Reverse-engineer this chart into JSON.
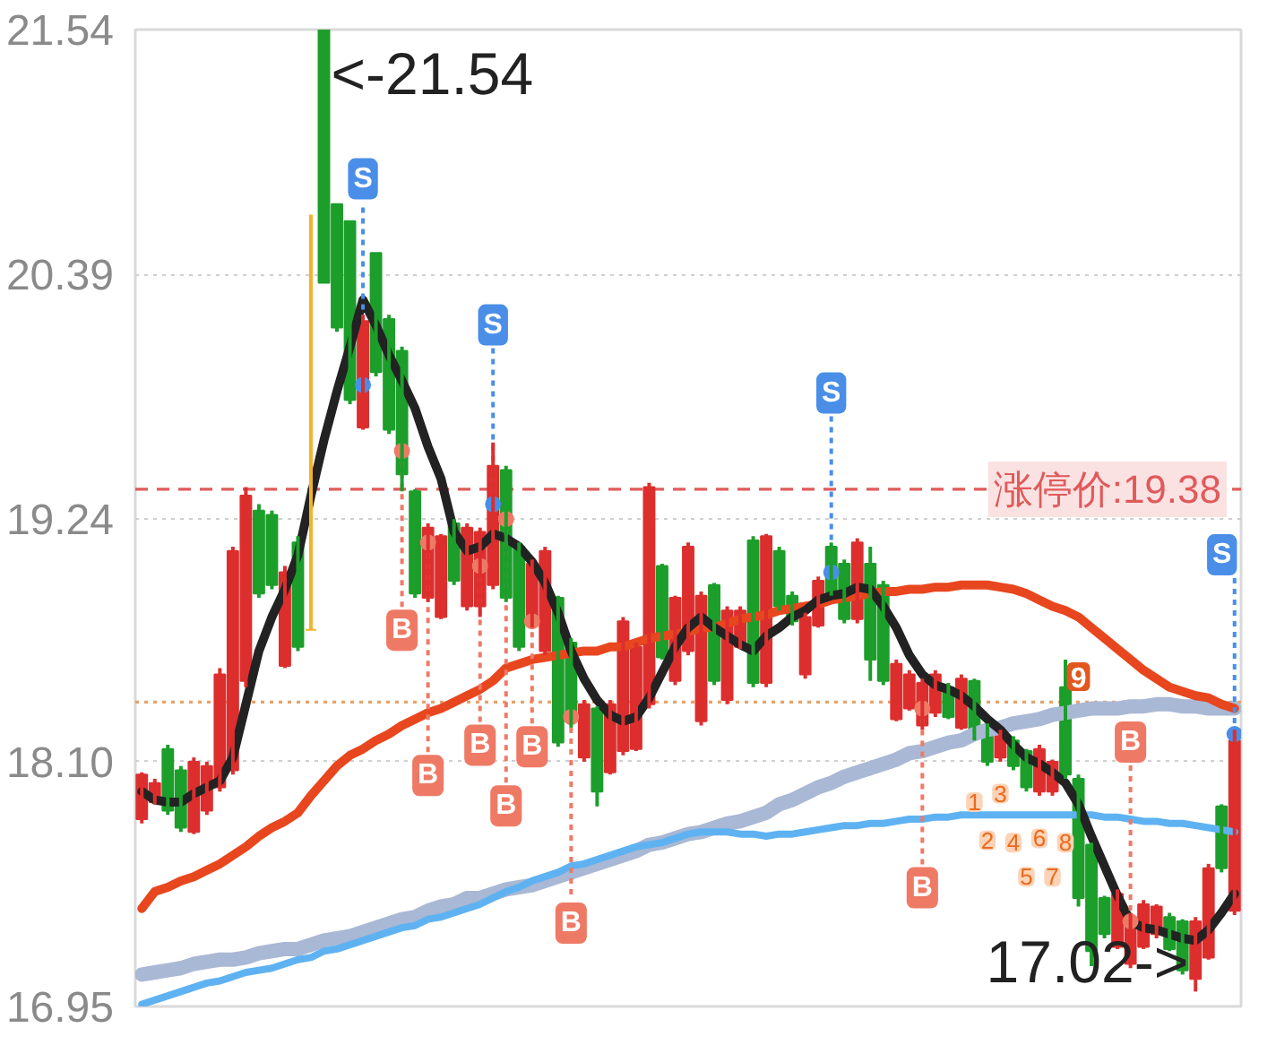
{
  "chart_data": {
    "type": "candlestick",
    "categories": [
      null,
      null,
      null,
      null,
      null,
      null,
      null,
      null,
      null,
      null,
      null,
      null,
      null,
      null,
      null,
      null,
      null,
      null,
      null,
      null,
      null,
      null,
      null,
      null,
      null,
      null,
      null,
      null,
      null,
      null,
      null,
      null,
      null,
      null,
      null,
      null,
      null,
      null,
      null,
      null,
      null,
      null,
      null,
      null,
      null,
      null,
      null,
      null,
      null,
      null,
      null,
      null,
      null,
      null,
      null,
      null,
      null,
      null,
      null,
      null,
      null,
      null,
      null,
      null,
      null,
      null,
      null,
      null,
      null,
      null,
      null,
      null,
      null,
      null,
      null,
      null,
      null,
      null,
      null,
      null,
      null,
      null,
      null,
      null,
      null
    ],
    "ohlc": [
      [
        17.83,
        18.05,
        17.81,
        18.04
      ],
      [
        17.91,
        18.02,
        17.9,
        18.0
      ],
      [
        18.16,
        18.18,
        17.85,
        17.87
      ],
      [
        18.06,
        18.08,
        17.77,
        17.79
      ],
      [
        17.77,
        18.12,
        17.76,
        18.1
      ],
      [
        17.87,
        18.1,
        17.85,
        18.08
      ],
      [
        17.98,
        18.54,
        17.96,
        18.51
      ],
      [
        18.06,
        19.11,
        18.04,
        19.09
      ],
      [
        18.48,
        19.39,
        18.45,
        19.35
      ],
      [
        19.28,
        19.31,
        18.87,
        18.89
      ],
      [
        19.26,
        19.28,
        18.91,
        18.93
      ],
      [
        18.55,
        19.02,
        18.54,
        18.99
      ],
      [
        19.13,
        19.16,
        18.62,
        18.64
      ],
      [
        18.72,
        20.67,
        18.72,
        18.72
      ],
      [
        21.54,
        21.54,
        20.35,
        20.35
      ],
      [
        20.72,
        20.72,
        20.12,
        20.14
      ],
      [
        20.64,
        20.64,
        19.78,
        19.8
      ],
      [
        19.67,
        20.2,
        19.66,
        20.17
      ],
      [
        20.49,
        20.49,
        19.91,
        19.93
      ],
      [
        20.18,
        20.2,
        19.64,
        19.66
      ],
      [
        20.03,
        20.05,
        19.37,
        19.45
      ],
      [
        19.37,
        19.38,
        18.87,
        18.89
      ],
      [
        18.87,
        19.22,
        18.85,
        19.2
      ],
      [
        18.78,
        19.17,
        18.77,
        19.16
      ],
      [
        19.22,
        19.24,
        18.93,
        18.95
      ],
      [
        18.83,
        19.22,
        18.81,
        19.2
      ],
      [
        18.83,
        19.2,
        18.78,
        19.18
      ],
      [
        18.93,
        19.6,
        18.91,
        19.49
      ],
      [
        19.47,
        19.49,
        18.85,
        18.87
      ],
      [
        19.11,
        19.13,
        18.62,
        18.64
      ],
      [
        18.74,
        19.05,
        18.73,
        19.03
      ],
      [
        18.62,
        19.11,
        18.6,
        19.09
      ],
      [
        18.87,
        18.88,
        18.17,
        18.19
      ],
      [
        18.66,
        18.68,
        18.26,
        18.29
      ],
      [
        18.12,
        18.39,
        18.1,
        18.37
      ],
      [
        18.35,
        18.36,
        17.89,
        17.96
      ],
      [
        18.05,
        18.39,
        18.04,
        18.37
      ],
      [
        18.15,
        18.78,
        18.13,
        18.76
      ],
      [
        18.16,
        18.66,
        18.15,
        18.64
      ],
      [
        18.37,
        19.41,
        18.35,
        19.39
      ],
      [
        19.02,
        19.03,
        18.58,
        18.59
      ],
      [
        18.48,
        18.88,
        18.46,
        18.87
      ],
      [
        18.62,
        19.13,
        18.6,
        19.11
      ],
      [
        18.29,
        18.9,
        18.27,
        18.88
      ],
      [
        18.93,
        18.94,
        18.46,
        18.48
      ],
      [
        18.39,
        18.83,
        18.37,
        18.81
      ],
      [
        18.64,
        18.83,
        18.63,
        18.81
      ],
      [
        19.14,
        19.16,
        18.45,
        18.47
      ],
      [
        18.47,
        19.17,
        18.45,
        19.16
      ],
      [
        19.09,
        19.11,
        18.81,
        18.83
      ],
      [
        18.88,
        18.9,
        18.74,
        18.76
      ],
      [
        18.51,
        18.8,
        18.49,
        18.78
      ],
      [
        18.74,
        18.97,
        18.73,
        18.95
      ],
      [
        19.11,
        19.13,
        18.88,
        18.89
      ],
      [
        19.03,
        19.05,
        18.75,
        18.77
      ],
      [
        18.77,
        19.15,
        18.75,
        19.13
      ],
      [
        19.03,
        19.11,
        18.48,
        18.58
      ],
      [
        18.93,
        18.95,
        18.46,
        18.48
      ],
      [
        18.3,
        18.58,
        18.29,
        18.56
      ],
      [
        18.35,
        18.53,
        18.34,
        18.51
      ],
      [
        18.27,
        18.49,
        18.25,
        18.47
      ],
      [
        18.33,
        18.53,
        18.31,
        18.51
      ],
      [
        18.45,
        18.47,
        18.3,
        18.31
      ],
      [
        18.26,
        18.51,
        18.25,
        18.49
      ],
      [
        18.48,
        18.49,
        18.2,
        18.22
      ],
      [
        18.26,
        18.28,
        18.08,
        18.1
      ],
      [
        18.12,
        18.25,
        18.1,
        18.23
      ],
      [
        18.2,
        18.22,
        18.06,
        18.08
      ],
      [
        18.15,
        18.16,
        17.96,
        17.98
      ],
      [
        17.96,
        18.18,
        17.94,
        18.16
      ],
      [
        17.96,
        18.11,
        17.94,
        18.1
      ],
      [
        18.45,
        18.58,
        18.02,
        18.04
      ],
      [
        18.02,
        18.04,
        17.42,
        17.46
      ],
      [
        17.71,
        17.72,
        17.14,
        17.21
      ],
      [
        17.46,
        17.47,
        17.27,
        17.29
      ],
      [
        17.23,
        17.5,
        17.22,
        17.48
      ],
      [
        17.15,
        17.39,
        17.13,
        17.37
      ],
      [
        17.23,
        17.45,
        17.22,
        17.43
      ],
      [
        17.29,
        17.43,
        17.27,
        17.42
      ],
      [
        17.37,
        17.39,
        17.21,
        17.22
      ],
      [
        17.35,
        17.36,
        17.1,
        17.12
      ],
      [
        17.08,
        17.37,
        17.02,
        17.35
      ],
      [
        17.18,
        17.62,
        17.17,
        17.6
      ],
      [
        17.89,
        17.9,
        17.58,
        17.6
      ],
      [
        17.4,
        18.25,
        17.38,
        18.2
      ]
    ],
    "colors": [
      "#dd2e2e",
      "#dd2e2e",
      "#1c9e2b",
      "#1c9e2b",
      "#dd2e2e",
      "#dd2e2e",
      "#dd2e2e",
      "#dd2e2e",
      "#dd2e2e",
      "#1c9e2b",
      "#1c9e2b",
      "#dd2e2e",
      "#1c9e2b",
      "#f2b32a",
      "#1c9e2b",
      "#1c9e2b",
      "#1c9e2b",
      "#dd2e2e",
      "#1c9e2b",
      "#1c9e2b",
      "#1c9e2b",
      "#1c9e2b",
      "#dd2e2e",
      "#dd2e2e",
      "#1c9e2b",
      "#dd2e2e",
      "#dd2e2e",
      "#dd2e2e",
      "#1c9e2b",
      "#1c9e2b",
      "#dd2e2e",
      "#dd2e2e",
      "#1c9e2b",
      "#1c9e2b",
      "#dd2e2e",
      "#1c9e2b",
      "#dd2e2e",
      "#dd2e2e",
      "#dd2e2e",
      "#dd2e2e",
      "#1c9e2b",
      "#dd2e2e",
      "#dd2e2e",
      "#dd2e2e",
      "#1c9e2b",
      "#dd2e2e",
      "#dd2e2e",
      "#1c9e2b",
      "#dd2e2e",
      "#1c9e2b",
      "#1c9e2b",
      "#dd2e2e",
      "#dd2e2e",
      "#1c9e2b",
      "#1c9e2b",
      "#dd2e2e",
      "#1c9e2b",
      "#1c9e2b",
      "#dd2e2e",
      "#dd2e2e",
      "#dd2e2e",
      "#dd2e2e",
      "#1c9e2b",
      "#dd2e2e",
      "#1c9e2b",
      "#1c9e2b",
      "#dd2e2e",
      "#1c9e2b",
      "#1c9e2b",
      "#dd2e2e",
      "#dd2e2e",
      "#1c9e2b",
      "#1c9e2b",
      "#1c9e2b",
      "#1c9e2b",
      "#dd2e2e",
      "#dd2e2e",
      "#dd2e2e",
      "#dd2e2e",
      "#1c9e2b",
      "#1c9e2b",
      "#dd2e2e",
      "#dd2e2e",
      "#1c9e2b",
      "#dd2e2e"
    ],
    "ylim": [
      16.95,
      21.54
    ],
    "yticks": [
      16.95,
      {
        "value": 18.1,
        "label": "18.10"
      },
      19.24,
      20.39,
      21.54
    ],
    "tick_labels": "y",
    "grid": "y",
    "series": [
      {
        "type": "line",
        "color": "#a9b8d4",
        "values": [
          17.1,
          17.11,
          17.12,
          17.13,
          17.15,
          17.16,
          17.17,
          17.17,
          17.18,
          17.2,
          17.21,
          17.22,
          17.22,
          17.24,
          17.26,
          17.27,
          17.28,
          17.3,
          17.32,
          17.34,
          17.36,
          17.37,
          17.4,
          17.42,
          17.43,
          17.46,
          17.46,
          17.48,
          17.5,
          17.51,
          17.52,
          17.54,
          17.56,
          17.58,
          17.6,
          17.62,
          17.64,
          17.66,
          17.68,
          17.71,
          17.72,
          17.74,
          17.76,
          17.77,
          17.79,
          17.81,
          17.82,
          17.84,
          17.86,
          17.9,
          17.92,
          17.95,
          17.98,
          18.0,
          18.03,
          18.05,
          18.07,
          18.09,
          18.11,
          18.14,
          18.15,
          18.17,
          18.19,
          18.2,
          18.23,
          18.25,
          18.26,
          18.28,
          18.29,
          18.3,
          18.32,
          18.33,
          18.34,
          18.35,
          18.35,
          18.35,
          18.36,
          18.36,
          18.37,
          18.37,
          18.36,
          18.36,
          18.35,
          18.35,
          18.35
        ]
      },
      {
        "type": "line",
        "color": "#5fb2f2",
        "values": [
          16.96,
          16.98,
          17.0,
          17.02,
          17.04,
          17.06,
          17.07,
          17.09,
          17.11,
          17.12,
          17.13,
          17.15,
          17.17,
          17.18,
          17.21,
          17.22,
          17.24,
          17.26,
          17.28,
          17.3,
          17.32,
          17.33,
          17.36,
          17.37,
          17.39,
          17.41,
          17.43,
          17.46,
          17.49,
          17.51,
          17.54,
          17.56,
          17.58,
          17.61,
          17.62,
          17.64,
          17.66,
          17.68,
          17.7,
          17.71,
          17.72,
          17.74,
          17.76,
          17.77,
          17.77,
          17.77,
          17.76,
          17.76,
          17.75,
          17.76,
          17.76,
          17.77,
          17.78,
          17.79,
          17.8,
          17.8,
          17.81,
          17.81,
          17.82,
          17.83,
          17.83,
          17.84,
          17.84,
          17.85,
          17.85,
          17.85,
          17.85,
          17.85,
          17.85,
          17.85,
          17.85,
          17.85,
          17.85,
          17.85,
          17.84,
          17.84,
          17.83,
          17.82,
          17.82,
          17.81,
          17.81,
          17.8,
          17.79,
          17.78,
          17.77
        ]
      },
      {
        "type": "line",
        "color": "#e8461e",
        "values": [
          17.41,
          17.49,
          17.51,
          17.54,
          17.56,
          17.59,
          17.62,
          17.66,
          17.7,
          17.75,
          17.79,
          17.82,
          17.86,
          17.94,
          18.01,
          18.08,
          18.13,
          18.16,
          18.2,
          18.23,
          18.27,
          18.3,
          18.33,
          18.35,
          18.38,
          18.41,
          18.44,
          18.48,
          18.54,
          18.56,
          18.58,
          18.59,
          18.6,
          18.61,
          18.62,
          18.62,
          18.64,
          18.64,
          18.66,
          18.68,
          18.69,
          18.7,
          18.71,
          18.73,
          18.73,
          18.75,
          18.77,
          18.78,
          18.79,
          18.81,
          18.82,
          18.83,
          18.84,
          18.86,
          18.87,
          18.88,
          18.89,
          18.9,
          18.9,
          18.91,
          18.91,
          18.92,
          18.92,
          18.93,
          18.93,
          18.93,
          18.92,
          18.91,
          18.89,
          18.86,
          18.83,
          18.81,
          18.78,
          18.73,
          18.68,
          18.63,
          18.58,
          18.53,
          18.49,
          18.45,
          18.43,
          18.41,
          18.4,
          18.37,
          18.35
        ]
      },
      {
        "type": "line",
        "color": "#222222",
        "values": [
          17.96,
          17.92,
          17.91,
          17.91,
          17.95,
          17.98,
          18.01,
          18.12,
          18.37,
          18.62,
          18.78,
          18.91,
          19.07,
          19.35,
          19.61,
          19.84,
          20.05,
          20.27,
          20.15,
          20.01,
          19.89,
          19.76,
          19.58,
          19.43,
          19.18,
          19.09,
          19.11,
          19.17,
          19.15,
          19.11,
          19.04,
          18.94,
          18.8,
          18.62,
          18.49,
          18.39,
          18.32,
          18.29,
          18.31,
          18.4,
          18.52,
          18.64,
          18.73,
          18.78,
          18.73,
          18.69,
          18.65,
          18.62,
          18.69,
          18.73,
          18.78,
          18.81,
          18.86,
          18.88,
          18.89,
          18.92,
          18.91,
          18.83,
          18.73,
          18.6,
          18.51,
          18.46,
          18.44,
          18.41,
          18.36,
          18.3,
          18.25,
          18.18,
          18.12,
          18.09,
          18.05,
          18.0,
          17.9,
          17.75,
          17.61,
          17.47,
          17.35,
          17.32,
          17.31,
          17.29,
          17.27,
          17.26,
          17.31,
          17.39,
          17.48
        ]
      },
      {
        "type": "scatter",
        "color": "#4a8ee8",
        "marker": "circle",
        "values": [
          null,
          null,
          null,
          null,
          null,
          null,
          null,
          null,
          null,
          null,
          null,
          null,
          null,
          null,
          null,
          null,
          null,
          19.87,
          null,
          null,
          null,
          null,
          null,
          null,
          null,
          null,
          null,
          19.31,
          null,
          null,
          null,
          null,
          null,
          null,
          null,
          null,
          null,
          null,
          null,
          null,
          null,
          null,
          null,
          null,
          null,
          null,
          null,
          null,
          null,
          null,
          null,
          null,
          null,
          18.99,
          null,
          null,
          null,
          null,
          null,
          null,
          null,
          null,
          null,
          null,
          null,
          null,
          null,
          null,
          null,
          null,
          null,
          null,
          null,
          null,
          null,
          null,
          null,
          null,
          null,
          null,
          null,
          null,
          null,
          null,
          18.23
        ],
        "value_labels": [
          null,
          null,
          null,
          null,
          null,
          null,
          null,
          null,
          null,
          null,
          null,
          null,
          null,
          null,
          null,
          null,
          null,
          "S",
          null,
          null,
          null,
          null,
          null,
          null,
          null,
          null,
          null,
          "S",
          null,
          null,
          null,
          null,
          null,
          null,
          null,
          null,
          null,
          null,
          null,
          null,
          null,
          null,
          null,
          null,
          null,
          null,
          null,
          null,
          null,
          null,
          null,
          null,
          null,
          "S",
          null,
          null,
          null,
          null,
          null,
          null,
          null,
          null,
          null,
          null,
          null,
          null,
          null,
          null,
          null,
          null,
          null,
          null,
          null,
          null,
          null,
          null,
          null,
          null,
          null,
          null,
          null,
          null,
          null,
          null,
          "S"
        ]
      },
      {
        "type": "scatter",
        "color": "#ee7a66",
        "marker": "circle",
        "values": [
          null,
          null,
          null,
          null,
          null,
          null,
          null,
          null,
          null,
          null,
          null,
          null,
          null,
          null,
          null,
          null,
          null,
          null,
          null,
          null,
          19.56,
          null,
          19.13,
          null,
          null,
          null,
          19.02,
          null,
          19.24,
          null,
          18.76,
          null,
          null,
          18.31,
          null,
          null,
          null,
          null,
          null,
          null,
          null,
          null,
          null,
          null,
          null,
          null,
          null,
          null,
          null,
          null,
          null,
          null,
          null,
          null,
          null,
          null,
          null,
          null,
          null,
          null,
          18.35,
          null,
          null,
          null,
          null,
          null,
          null,
          null,
          null,
          null,
          null,
          null,
          null,
          null,
          null,
          null,
          17.35,
          null,
          null,
          null,
          null,
          null,
          null,
          null,
          null
        ],
        "value_labels": [
          null,
          null,
          null,
          null,
          null,
          null,
          null,
          null,
          null,
          null,
          null,
          null,
          null,
          null,
          null,
          null,
          null,
          null,
          null,
          null,
          "B",
          null,
          "B",
          null,
          null,
          null,
          "B",
          null,
          "B",
          null,
          "B",
          null,
          null,
          "B",
          null,
          null,
          null,
          null,
          null,
          null,
          null,
          null,
          null,
          null,
          null,
          null,
          null,
          null,
          null,
          null,
          null,
          null,
          null,
          null,
          null,
          null,
          null,
          null,
          null,
          null,
          "B",
          null,
          null,
          null,
          null,
          null,
          null,
          null,
          null,
          null,
          null,
          null,
          null,
          null,
          null,
          null,
          "B",
          null,
          null,
          null,
          null,
          null,
          null,
          null,
          null
        ]
      },
      {
        "type": "scatter",
        "name": "1",
        "color": "#fcd3b6",
        "marker": "square",
        "values": [
          null,
          null,
          null,
          null,
          null,
          null,
          null,
          null,
          null,
          null,
          null,
          null,
          null,
          null,
          null,
          null,
          null,
          null,
          null,
          null,
          null,
          null,
          null,
          null,
          null,
          null,
          null,
          null,
          null,
          null,
          null,
          null,
          null,
          null,
          null,
          null,
          null,
          null,
          null,
          null,
          null,
          null,
          null,
          null,
          null,
          null,
          null,
          null,
          null,
          null,
          null,
          null,
          null,
          null,
          null,
          null,
          null,
          null,
          null,
          null,
          null,
          null,
          null,
          null,
          17.91,
          null,
          null,
          null,
          null,
          null,
          null,
          null,
          null,
          null,
          null,
          null,
          null,
          null,
          null,
          null,
          null,
          null,
          null,
          null,
          null
        ]
      },
      {
        "type": "scatter",
        "name": "2",
        "color": "#fcd3b6",
        "marker": "square",
        "values": [
          null,
          null,
          null,
          null,
          null,
          null,
          null,
          null,
          null,
          null,
          null,
          null,
          null,
          null,
          null,
          null,
          null,
          null,
          null,
          null,
          null,
          null,
          null,
          null,
          null,
          null,
          null,
          null,
          null,
          null,
          null,
          null,
          null,
          null,
          null,
          null,
          null,
          null,
          null,
          null,
          null,
          null,
          null,
          null,
          null,
          null,
          null,
          null,
          null,
          null,
          null,
          null,
          null,
          null,
          null,
          null,
          null,
          null,
          null,
          null,
          null,
          null,
          null,
          null,
          null,
          17.73,
          null,
          null,
          null,
          null,
          null,
          null,
          null,
          null,
          null,
          null,
          null,
          null,
          null,
          null,
          null,
          null,
          null,
          null,
          null
        ]
      },
      {
        "type": "scatter",
        "name": "3",
        "color": "#fcd3b6",
        "marker": "square",
        "values": [
          null,
          null,
          null,
          null,
          null,
          null,
          null,
          null,
          null,
          null,
          null,
          null,
          null,
          null,
          null,
          null,
          null,
          null,
          null,
          null,
          null,
          null,
          null,
          null,
          null,
          null,
          null,
          null,
          null,
          null,
          null,
          null,
          null,
          null,
          null,
          null,
          null,
          null,
          null,
          null,
          null,
          null,
          null,
          null,
          null,
          null,
          null,
          null,
          null,
          null,
          null,
          null,
          null,
          null,
          null,
          null,
          null,
          null,
          null,
          null,
          null,
          null,
          null,
          null,
          null,
          null,
          17.95,
          null,
          null,
          null,
          null,
          null,
          null,
          null,
          null,
          null,
          null,
          null,
          null,
          null,
          null,
          null,
          null,
          null,
          null
        ]
      },
      {
        "type": "scatter",
        "name": "4",
        "color": "#fcd3b6",
        "marker": "square",
        "values": [
          null,
          null,
          null,
          null,
          null,
          null,
          null,
          null,
          null,
          null,
          null,
          null,
          null,
          null,
          null,
          null,
          null,
          null,
          null,
          null,
          null,
          null,
          null,
          null,
          null,
          null,
          null,
          null,
          null,
          null,
          null,
          null,
          null,
          null,
          null,
          null,
          null,
          null,
          null,
          null,
          null,
          null,
          null,
          null,
          null,
          null,
          null,
          null,
          null,
          null,
          null,
          null,
          null,
          null,
          null,
          null,
          null,
          null,
          null,
          null,
          null,
          null,
          null,
          null,
          null,
          null,
          null,
          17.72,
          null,
          null,
          null,
          null,
          null,
          null,
          null,
          null,
          null,
          null,
          null,
          null,
          null,
          null,
          null,
          null,
          null
        ]
      },
      {
        "type": "scatter",
        "name": "5",
        "color": "#fcd3b6",
        "marker": "square",
        "values": [
          null,
          null,
          null,
          null,
          null,
          null,
          null,
          null,
          null,
          null,
          null,
          null,
          null,
          null,
          null,
          null,
          null,
          null,
          null,
          null,
          null,
          null,
          null,
          null,
          null,
          null,
          null,
          null,
          null,
          null,
          null,
          null,
          null,
          null,
          null,
          null,
          null,
          null,
          null,
          null,
          null,
          null,
          null,
          null,
          null,
          null,
          null,
          null,
          null,
          null,
          null,
          null,
          null,
          null,
          null,
          null,
          null,
          null,
          null,
          null,
          null,
          null,
          null,
          null,
          null,
          null,
          null,
          null,
          17.56,
          null,
          null,
          null,
          null,
          null,
          null,
          null,
          null,
          null,
          null,
          null,
          null,
          null,
          null,
          null,
          null
        ]
      },
      {
        "type": "scatter",
        "name": "6",
        "color": "#fcd3b6",
        "marker": "square",
        "values": [
          null,
          null,
          null,
          null,
          null,
          null,
          null,
          null,
          null,
          null,
          null,
          null,
          null,
          null,
          null,
          null,
          null,
          null,
          null,
          null,
          null,
          null,
          null,
          null,
          null,
          null,
          null,
          null,
          null,
          null,
          null,
          null,
          null,
          null,
          null,
          null,
          null,
          null,
          null,
          null,
          null,
          null,
          null,
          null,
          null,
          null,
          null,
          null,
          null,
          null,
          null,
          null,
          null,
          null,
          null,
          null,
          null,
          null,
          null,
          null,
          null,
          null,
          null,
          null,
          null,
          null,
          null,
          null,
          null,
          17.74,
          null,
          null,
          null,
          null,
          null,
          null,
          null,
          null,
          null,
          null,
          null,
          null,
          null,
          null,
          null
        ]
      },
      {
        "type": "scatter",
        "name": "7",
        "color": "#fcd3b6",
        "marker": "square",
        "values": [
          null,
          null,
          null,
          null,
          null,
          null,
          null,
          null,
          null,
          null,
          null,
          null,
          null,
          null,
          null,
          null,
          null,
          null,
          null,
          null,
          null,
          null,
          null,
          null,
          null,
          null,
          null,
          null,
          null,
          null,
          null,
          null,
          null,
          null,
          null,
          null,
          null,
          null,
          null,
          null,
          null,
          null,
          null,
          null,
          null,
          null,
          null,
          null,
          null,
          null,
          null,
          null,
          null,
          null,
          null,
          null,
          null,
          null,
          null,
          null,
          null,
          null,
          null,
          null,
          null,
          null,
          null,
          null,
          null,
          null,
          17.56,
          null,
          null,
          null,
          null,
          null,
          null,
          null,
          null,
          null,
          null,
          null,
          null,
          null,
          null
        ]
      },
      {
        "type": "scatter",
        "name": "8",
        "color": "#fcd3b6",
        "marker": "square",
        "values": [
          null,
          null,
          null,
          null,
          null,
          null,
          null,
          null,
          null,
          null,
          null,
          null,
          null,
          null,
          null,
          null,
          null,
          null,
          null,
          null,
          null,
          null,
          null,
          null,
          null,
          null,
          null,
          null,
          null,
          null,
          null,
          null,
          null,
          null,
          null,
          null,
          null,
          null,
          null,
          null,
          null,
          null,
          null,
          null,
          null,
          null,
          null,
          null,
          null,
          null,
          null,
          null,
          null,
          null,
          null,
          null,
          null,
          null,
          null,
          null,
          null,
          null,
          null,
          null,
          null,
          null,
          null,
          null,
          null,
          null,
          null,
          17.72,
          null,
          null,
          null,
          null,
          null,
          null,
          null,
          null,
          null,
          null,
          null,
          null,
          null
        ]
      },
      {
        "type": "scatter",
        "name": "9",
        "color": "#e2561f",
        "marker": "square",
        "values": [
          null,
          null,
          null,
          null,
          null,
          null,
          null,
          null,
          null,
          null,
          null,
          null,
          null,
          null,
          null,
          null,
          null,
          null,
          null,
          null,
          null,
          null,
          null,
          null,
          null,
          null,
          null,
          null,
          null,
          null,
          null,
          null,
          null,
          null,
          null,
          null,
          null,
          null,
          null,
          null,
          null,
          null,
          null,
          null,
          null,
          null,
          null,
          null,
          null,
          null,
          null,
          null,
          null,
          null,
          null,
          null,
          null,
          null,
          null,
          null,
          null,
          null,
          null,
          null,
          null,
          null,
          null,
          null,
          null,
          null,
          null,
          null,
          18.5,
          null,
          null,
          null,
          null,
          null,
          null,
          null,
          null,
          null,
          null,
          null,
          null
        ]
      }
    ],
    "ref_lines": [
      {
        "axis": "y",
        "value": 19.38,
        "label": "涨停价:19.38",
        "color": "#e05a5a",
        "line_style": "dashed"
      },
      {
        "axis": "y",
        "value": 18.38,
        "color": "#e8a26a",
        "line_style": "dotted"
      }
    ],
    "annotations": [
      "<-21.54",
      "17.02->"
    ]
  }
}
